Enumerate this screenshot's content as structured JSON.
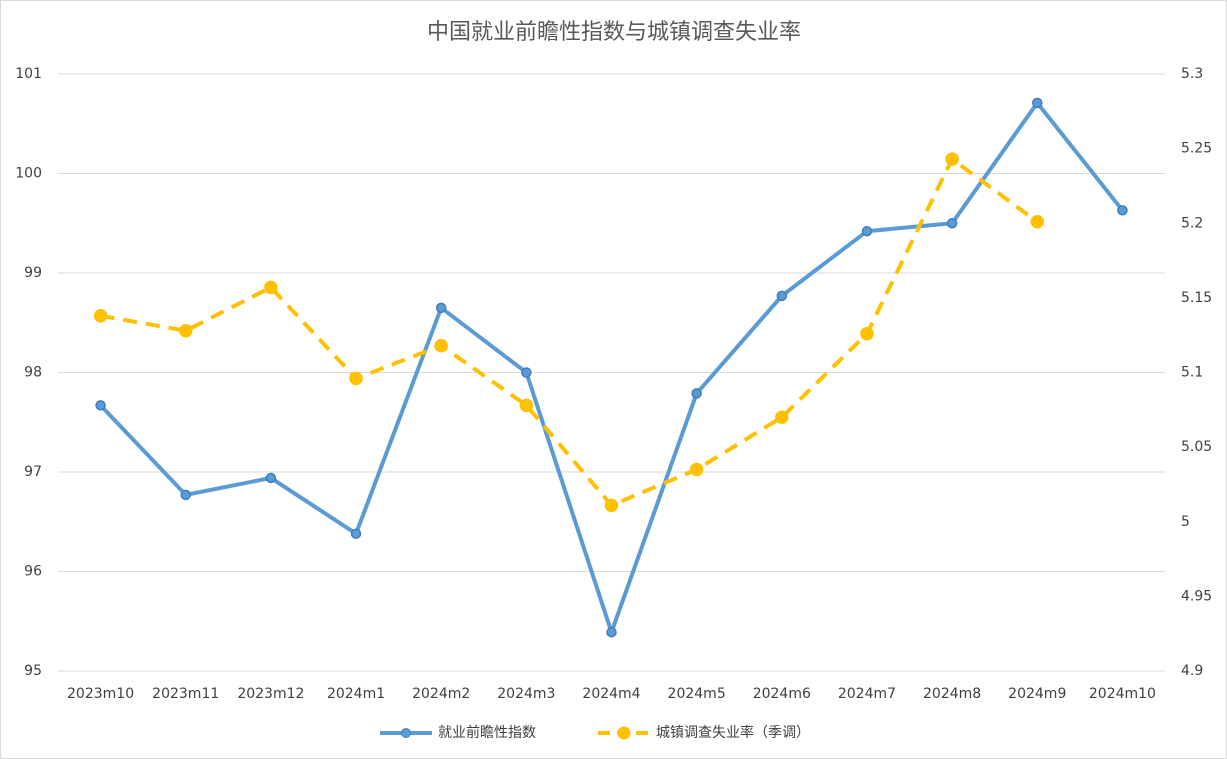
{
  "chart_data": {
    "type": "line",
    "title": "中国就业前瞻性指数与城镇调查失业率",
    "categories": [
      "2023m10",
      "2023m11",
      "2023m12",
      "2024m1",
      "2024m2",
      "2024m3",
      "2024m4",
      "2024m5",
      "2024m6",
      "2024m7",
      "2024m8",
      "2024m9",
      "2024m10"
    ],
    "series": [
      {
        "name": "就业前瞻性指数",
        "color": "#5b9bd5",
        "values": [
          97.67,
          96.77,
          96.94,
          96.38,
          98.65,
          98.0,
          95.39,
          97.79,
          98.77,
          99.42,
          99.5,
          100.71,
          99.63
        ]
      },
      {
        "name": "城镇调查失业率（季调）",
        "color": "#ffc000",
        "axis": "y2",
        "dashed": true,
        "values": [
          5.138,
          5.128,
          5.157,
          5.096,
          5.118,
          5.078,
          5.011,
          5.035,
          5.07,
          5.126,
          5.243,
          5.201,
          null
        ]
      }
    ],
    "ylim": [
      95,
      101
    ],
    "yticks": [
      95,
      96,
      97,
      98,
      99,
      100,
      101
    ],
    "y2lim": [
      4.9,
      5.3
    ],
    "y2ticks": [
      4.9,
      4.95,
      5,
      5.05,
      5.1,
      5.15,
      5.2,
      5.25,
      5.3
    ],
    "grid": true,
    "legend": "bottom"
  }
}
